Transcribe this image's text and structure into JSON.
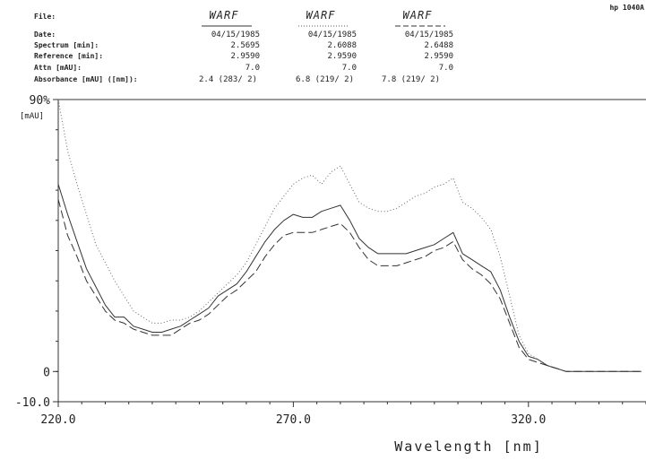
{
  "header": {
    "brand": "hp 1040A",
    "labels": {
      "file": "File:",
      "date": "Date:",
      "spectrum": "Spectrum [min]:",
      "reference": "Reference [min]:",
      "attn": "Attn [mAU]:",
      "absorbance": "Absorbance [mAU] ([nm]):"
    },
    "columns": [
      {
        "file": "WARF",
        "date": "04/15/1985",
        "spectrum": "2.5695",
        "reference": "2.9590",
        "attn": "7.0",
        "absorbance": "2.4 (283/ 2)",
        "line_style": "solid"
      },
      {
        "file": "WARF",
        "date": "04/15/1985",
        "spectrum": "2.6088",
        "reference": "2.9590",
        "attn": "7.0",
        "absorbance": "6.8 (219/ 2)",
        "line_style": "dotted"
      },
      {
        "file": "WARF",
        "date": "04/15/1985",
        "spectrum": "2.6488",
        "reference": "2.9590",
        "attn": "7.0",
        "absorbance": "7.8 (219/ 2)",
        "line_style": "dashed"
      }
    ]
  },
  "chart_data": {
    "type": "line",
    "xlabel": "Wavelength [nm]",
    "ylabel": "[mAU]",
    "xlim": [
      220,
      345
    ],
    "ylim": [
      -10,
      90
    ],
    "x_ticks": [
      "220.0",
      "270.0",
      "320.0"
    ],
    "y_ticks": [
      "90%",
      "0",
      "-10.0"
    ],
    "series": [
      {
        "style": "solid",
        "x": [
          220,
          222,
          224,
          226,
          228,
          230,
          232,
          234,
          236,
          238,
          240,
          242,
          244,
          246,
          248,
          250,
          252,
          254,
          256,
          258,
          260,
          262,
          264,
          266,
          268,
          270,
          272,
          274,
          276,
          278,
          280,
          282,
          284,
          286,
          288,
          290,
          292,
          294,
          296,
          298,
          300,
          302,
          304,
          306,
          308,
          310,
          312,
          314,
          316,
          318,
          320,
          322,
          324,
          326,
          328,
          330,
          332,
          334,
          336,
          338,
          340,
          342,
          344
        ],
        "y": [
          62,
          52,
          43,
          34,
          28,
          22,
          18,
          18,
          15,
          14,
          13,
          13,
          14,
          15,
          17,
          19,
          21,
          25,
          27,
          29,
          33,
          38,
          43,
          47,
          50,
          52,
          51,
          51,
          53,
          54,
          55,
          50,
          44,
          41,
          39,
          39,
          39,
          39,
          40,
          41,
          42,
          44,
          46,
          39,
          37,
          35,
          33,
          27,
          18,
          10,
          5,
          4,
          2,
          1,
          0,
          0,
          0,
          0,
          0,
          0,
          0,
          0,
          0
        ]
      },
      {
        "style": "dotted",
        "x": [
          220,
          222,
          224,
          226,
          228,
          230,
          232,
          234,
          236,
          238,
          240,
          242,
          244,
          246,
          248,
          250,
          252,
          254,
          256,
          258,
          260,
          262,
          264,
          266,
          268,
          270,
          272,
          274,
          276,
          278,
          280,
          282,
          284,
          286,
          288,
          290,
          292,
          294,
          296,
          298,
          300,
          302,
          304,
          306,
          308,
          310,
          312,
          314,
          316,
          318,
          320,
          322,
          324,
          326,
          328,
          330,
          332,
          334,
          336,
          338,
          340,
          342,
          344
        ],
        "y": [
          90,
          73,
          62,
          52,
          42,
          36,
          30,
          25,
          20,
          18,
          16,
          16,
          17,
          17,
          18,
          20,
          23,
          26,
          29,
          32,
          36,
          42,
          48,
          54,
          58,
          62,
          64,
          65,
          62,
          66,
          68,
          62,
          56,
          54,
          53,
          53,
          54,
          56,
          58,
          59,
          61,
          62,
          64,
          56,
          54,
          51,
          47,
          38,
          25,
          12,
          6,
          4,
          2,
          1,
          0,
          0,
          0,
          0,
          0,
          0,
          0,
          0,
          0
        ]
      },
      {
        "style": "dashed",
        "x": [
          220,
          222,
          224,
          226,
          228,
          230,
          232,
          234,
          236,
          238,
          240,
          242,
          244,
          246,
          248,
          250,
          252,
          254,
          256,
          258,
          260,
          262,
          264,
          266,
          268,
          270,
          272,
          274,
          276,
          278,
          280,
          282,
          284,
          286,
          288,
          290,
          292,
          294,
          296,
          298,
          300,
          302,
          304,
          306,
          308,
          310,
          312,
          314,
          316,
          318,
          320,
          322,
          324,
          326,
          328,
          330,
          332,
          334,
          336,
          338,
          340,
          342,
          344
        ],
        "y": [
          57,
          45,
          38,
          30,
          25,
          20,
          17,
          16,
          14,
          13,
          12,
          12,
          12,
          14,
          16,
          17,
          19,
          22,
          25,
          27,
          30,
          33,
          38,
          42,
          45,
          46,
          46,
          46,
          47,
          48,
          49,
          46,
          41,
          37,
          35,
          35,
          35,
          36,
          37,
          38,
          40,
          41,
          43,
          37,
          34,
          32,
          29,
          24,
          16,
          8,
          4,
          3,
          2,
          1,
          0,
          0,
          0,
          0,
          0,
          0,
          0,
          0,
          0
        ]
      }
    ]
  }
}
